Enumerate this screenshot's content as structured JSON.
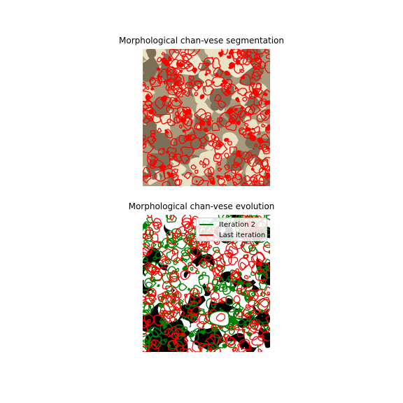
{
  "panels": [
    {
      "title": "Morphological chan-vese segmentation"
    },
    {
      "title": "Morphological chan-vese evolution",
      "legend": [
        {
          "label": "Iteration 2",
          "color": "#008000"
        },
        {
          "label": "Last iteration",
          "color": "#ff0000"
        }
      ]
    }
  ],
  "colors": {
    "contour": "#ff0000",
    "iteration_contour": "#008000",
    "texture_light": "#e9e2c4",
    "texture_dark": "#7d6f55",
    "mask_background": "#000000"
  }
}
